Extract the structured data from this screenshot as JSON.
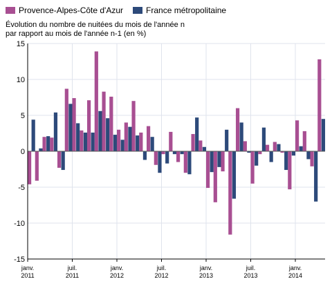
{
  "chart_data": {
    "type": "bar",
    "subtitle_line1": "Évolution du nombre de nuitées du mois de l'année n",
    "subtitle_line2": "par rapport au mois de l'année n-1 (en %)",
    "ylim": [
      -15,
      15
    ],
    "yticks": [
      15,
      10,
      5,
      0,
      -5,
      -10,
      -15
    ],
    "grid": true,
    "legend_position": "top-left",
    "xtick_labels": [
      {
        "index": 0,
        "month": "janv.",
        "year": "2011"
      },
      {
        "index": 6,
        "month": "juil.",
        "year": "2011"
      },
      {
        "index": 12,
        "month": "janv.",
        "year": "2012"
      },
      {
        "index": 18,
        "month": "juil.",
        "year": "2012"
      },
      {
        "index": 24,
        "month": "janv.",
        "year": "2013"
      },
      {
        "index": 30,
        "month": "juil.",
        "year": "2013"
      },
      {
        "index": 36,
        "month": "janv.",
        "year": "2014"
      }
    ],
    "categories": [
      "2011-01",
      "2011-02",
      "2011-03",
      "2011-04",
      "2011-05",
      "2011-06",
      "2011-07",
      "2011-08",
      "2011-09",
      "2011-10",
      "2011-11",
      "2011-12",
      "2012-01",
      "2012-02",
      "2012-03",
      "2012-04",
      "2012-05",
      "2012-06",
      "2012-07",
      "2012-08",
      "2012-09",
      "2012-10",
      "2012-11",
      "2012-12",
      "2013-01",
      "2013-02",
      "2013-03",
      "2013-04",
      "2013-05",
      "2013-06",
      "2013-07",
      "2013-08",
      "2013-09",
      "2013-10",
      "2013-11",
      "2013-12",
      "2014-01",
      "2014-02",
      "2014-03",
      "2014-04"
    ],
    "series": [
      {
        "name": "Provence-Alpes-Côte d'Azur",
        "color": "#a84f92",
        "values": [
          -4.6,
          -4.1,
          2.0,
          1.9,
          -2.3,
          8.7,
          7.4,
          2.9,
          7.1,
          13.9,
          8.3,
          7.6,
          3.0,
          4.0,
          7.0,
          2.6,
          3.5,
          -1.9,
          -0.4,
          2.7,
          -1.5,
          -3.0,
          2.4,
          1.5,
          -5.1,
          -7.1,
          -2.8,
          -11.6,
          6.0,
          1.4,
          -4.5,
          -0.4,
          0.9,
          1.3,
          -0.2,
          -5.3,
          4.3,
          2.8,
          -2.1,
          12.8
        ]
      },
      {
        "name": "France métropolitaine",
        "color": "#2d4a7a",
        "values": [
          4.4,
          0.4,
          2.1,
          5.4,
          -2.6,
          6.6,
          3.9,
          2.6,
          2.6,
          5.6,
          4.6,
          2.3,
          1.6,
          3.4,
          2.2,
          -1.2,
          2.0,
          -3.0,
          -1.7,
          -0.4,
          -0.4,
          -3.2,
          4.7,
          0.6,
          -2.9,
          -2.2,
          3.0,
          -6.6,
          4.0,
          -0.2,
          -2.0,
          3.3,
          -1.5,
          1.0,
          -2.6,
          -0.6,
          0.7,
          -1.1,
          -7.0,
          4.5
        ]
      }
    ]
  }
}
